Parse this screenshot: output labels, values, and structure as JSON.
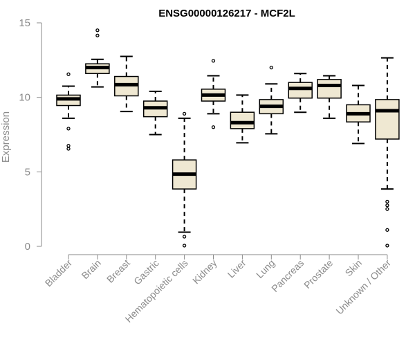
{
  "chart_data": {
    "type": "boxplot",
    "title": "ENSG00000126217 - MCF2L",
    "ylabel": "Expression",
    "xlabel": "",
    "ylim": [
      0,
      15
    ],
    "yticks": [
      0,
      5,
      10,
      15
    ],
    "grid": false,
    "legend": "none",
    "colors": {
      "box_fill": "#efe8d2",
      "box_stroke": "#000000",
      "median": "#000000",
      "axis": "#8a8a8a"
    },
    "categories": [
      "Bladder",
      "Brain",
      "Breast",
      "Gastric",
      "Hematopoietic cells",
      "Kidney",
      "Liver",
      "Lung",
      "Pancreas",
      "Prostate",
      "Skin",
      "Unknown / Other"
    ],
    "boxes": [
      {
        "category": "Bladder",
        "whisker_low": 8.6,
        "q1": 9.45,
        "median": 9.9,
        "q3": 10.15,
        "whisker_high": 10.75,
        "outliers": [
          11.55,
          7.9,
          6.75,
          6.55
        ]
      },
      {
        "category": "Brain",
        "whisker_low": 10.7,
        "q1": 11.6,
        "median": 12.0,
        "q3": 12.25,
        "whisker_high": 12.55,
        "outliers": [
          14.5,
          14.15
        ]
      },
      {
        "category": "Breast",
        "whisker_low": 9.05,
        "q1": 10.1,
        "median": 10.85,
        "q3": 11.4,
        "whisker_high": 12.75,
        "outliers": []
      },
      {
        "category": "Gastric",
        "whisker_low": 7.5,
        "q1": 8.7,
        "median": 9.3,
        "q3": 9.75,
        "whisker_high": 10.4,
        "outliers": []
      },
      {
        "category": "Hematopoietic cells",
        "whisker_low": 0.95,
        "q1": 3.85,
        "median": 4.85,
        "q3": 5.8,
        "whisker_high": 8.6,
        "outliers": [
          8.9,
          0.65,
          0.05
        ]
      },
      {
        "category": "Kidney",
        "whisker_low": 8.9,
        "q1": 9.75,
        "median": 10.15,
        "q3": 10.55,
        "whisker_high": 11.45,
        "outliers": [
          12.45,
          8.0
        ]
      },
      {
        "category": "Liver",
        "whisker_low": 6.95,
        "q1": 7.9,
        "median": 8.3,
        "q3": 9.0,
        "whisker_high": 10.15,
        "outliers": []
      },
      {
        "category": "Lung",
        "whisker_low": 7.55,
        "q1": 8.9,
        "median": 9.4,
        "q3": 9.85,
        "whisker_high": 10.9,
        "outliers": [
          12.0
        ]
      },
      {
        "category": "Pancreas",
        "whisker_low": 9.0,
        "q1": 9.95,
        "median": 10.6,
        "q3": 11.0,
        "whisker_high": 11.6,
        "outliers": []
      },
      {
        "category": "Prostate",
        "whisker_low": 8.6,
        "q1": 9.95,
        "median": 10.8,
        "q3": 11.2,
        "whisker_high": 11.45,
        "outliers": []
      },
      {
        "category": "Skin",
        "whisker_low": 6.9,
        "q1": 8.35,
        "median": 8.9,
        "q3": 9.5,
        "whisker_high": 10.8,
        "outliers": []
      },
      {
        "category": "Unknown / Other",
        "whisker_low": 3.85,
        "q1": 7.2,
        "median": 9.1,
        "q3": 9.85,
        "whisker_high": 12.65,
        "outliers": [
          3.0,
          2.75,
          2.5,
          1.1,
          0.05
        ]
      }
    ]
  }
}
